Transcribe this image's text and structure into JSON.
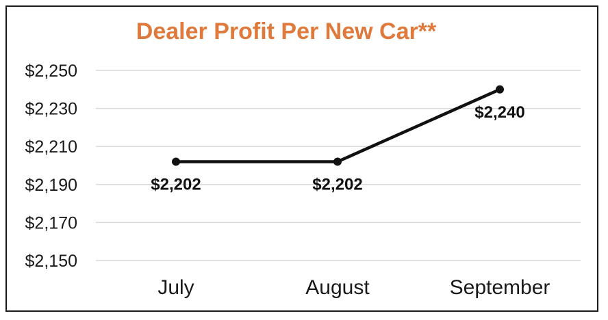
{
  "chart_data": {
    "type": "line",
    "title": "Dealer Profit Per New Car**",
    "categories": [
      "July",
      "August",
      "September"
    ],
    "series": [
      {
        "values": [
          2202,
          2202,
          2240
        ],
        "data_labels": [
          "$2,202",
          "$2,202",
          "$2,240"
        ]
      }
    ],
    "y_ticks": [
      2250,
      2230,
      2210,
      2190,
      2170,
      2150
    ],
    "y_tick_labels": [
      "$2,250",
      "$2,230",
      "$2,210",
      "$2,190",
      "$2,170",
      "$2,150"
    ],
    "ylim": [
      2150,
      2250
    ],
    "grid": true,
    "legend": "none",
    "colors": {
      "title": "#e07a3c",
      "line": "#111111",
      "grid": "#d9d9d9"
    }
  }
}
